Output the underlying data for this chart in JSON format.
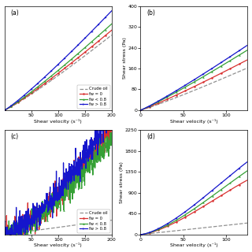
{
  "legend_entries": [
    "Crude oil",
    "fw = 0",
    "fw < 0.8",
    "fw > 0.8"
  ],
  "colors": [
    "#909090",
    "#d93030",
    "#35a035",
    "#1515cc"
  ],
  "panels": [
    {
      "label": "(a)",
      "xlim": [
        0,
        200
      ],
      "ylim": [
        0,
        430
      ],
      "xlabel": "Shear velocity (s⁻¹)",
      "ylabel": "",
      "show_legend": true,
      "legend_loc": "lower right",
      "x_ticks": [
        50,
        100,
        150,
        200
      ],
      "y_ticks": [],
      "show_yticks": false
    },
    {
      "label": "(b)",
      "xlim": [
        0,
        125
      ],
      "ylim": [
        0,
        400
      ],
      "xlabel": "Shear velocity (s⁻¹)",
      "ylabel": "Shear stress (Pa)",
      "show_legend": false,
      "x_ticks": [
        0,
        50,
        100
      ],
      "y_ticks": [
        0,
        80,
        160,
        240,
        320,
        400
      ],
      "show_yticks": true
    },
    {
      "label": "(c)",
      "xlim": [
        0,
        200
      ],
      "ylim": [
        0,
        2600
      ],
      "xlabel": "Shear velocity (s⁻¹)",
      "ylabel": "",
      "show_legend": true,
      "legend_loc": "lower right",
      "x_ticks": [
        50,
        100,
        150,
        200
      ],
      "y_ticks": [],
      "show_yticks": false
    },
    {
      "label": "(d)",
      "xlim": [
        0,
        125
      ],
      "ylim": [
        0,
        2250
      ],
      "xlabel": "Shear velocity (s⁻¹)",
      "ylabel": "Shear stress (Pa)",
      "show_legend": false,
      "x_ticks": [
        0,
        50,
        100
      ],
      "y_ticks": [
        0,
        450,
        900,
        1350,
        1800,
        2250
      ],
      "show_yticks": true
    }
  ]
}
